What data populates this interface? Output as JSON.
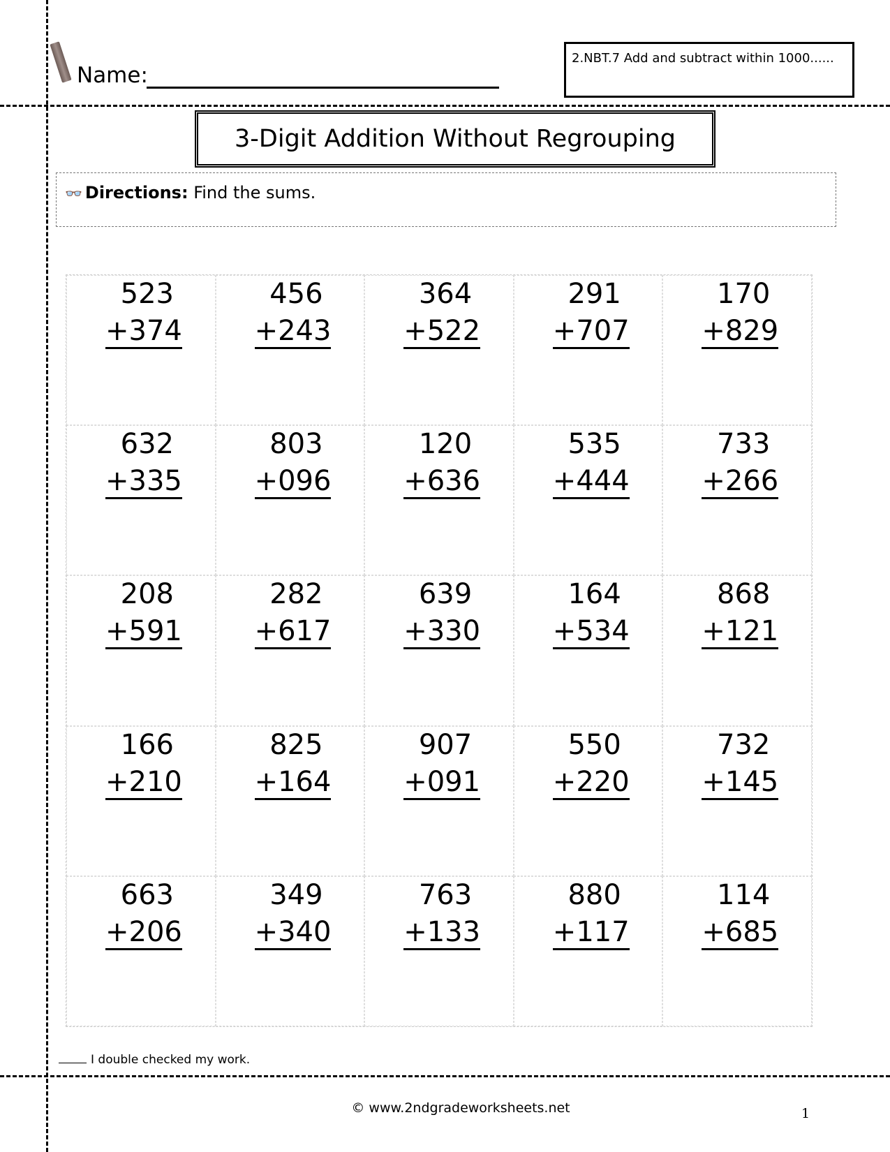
{
  "header": {
    "name_label": "Name:",
    "standard": "2.NBT.7 Add and subtract within 1000......",
    "title": "3-Digit Addition Without Regrouping"
  },
  "directions": {
    "label": "Directions:",
    "text": "Find the sums."
  },
  "problems": [
    [
      "523",
      "+374"
    ],
    [
      "456",
      "+243"
    ],
    [
      "364",
      "+522"
    ],
    [
      "291",
      "+707"
    ],
    [
      "170",
      "+829"
    ],
    [
      "632",
      "+335"
    ],
    [
      "803",
      "+096"
    ],
    [
      "120",
      "+636"
    ],
    [
      "535",
      "+444"
    ],
    [
      "733",
      "+266"
    ],
    [
      "208",
      "+591"
    ],
    [
      "282",
      "+617"
    ],
    [
      "639",
      "+330"
    ],
    [
      "164",
      "+534"
    ],
    [
      "868",
      "+121"
    ],
    [
      "166",
      "+210"
    ],
    [
      "825",
      "+164"
    ],
    [
      "907",
      "+091"
    ],
    [
      "550",
      "+220"
    ],
    [
      "732",
      "+145"
    ],
    [
      "663",
      "+206"
    ],
    [
      "349",
      "+340"
    ],
    [
      "763",
      "+133"
    ],
    [
      "880",
      "+117"
    ],
    [
      "114",
      "+685"
    ]
  ],
  "footer": {
    "check": "I double checked my work.",
    "copyright": "© www.2ndgradeworksheets.net",
    "page_number": "1"
  }
}
